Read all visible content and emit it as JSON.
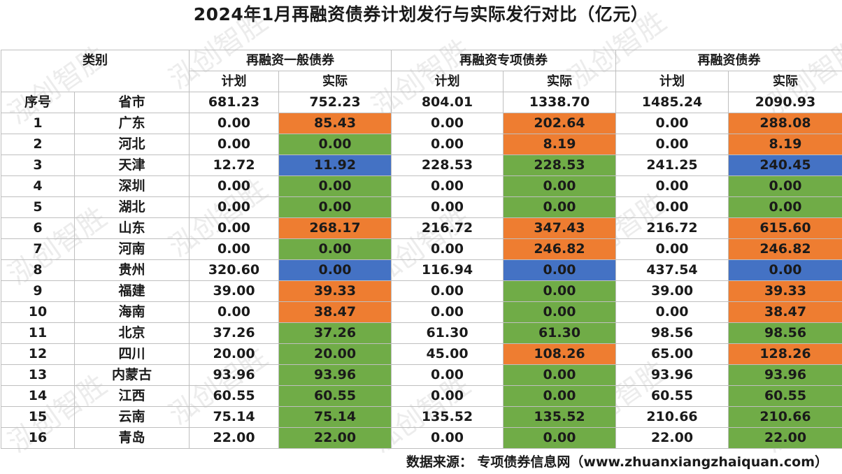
{
  "title": "2024年1月再融资债券计划发行与实际发行对比（亿元）",
  "header": {
    "category": "类别",
    "groups": [
      "再融资一般债券",
      "再融资专项债券",
      "再融资债券"
    ],
    "sub": [
      "计划",
      "实际",
      "计划",
      "实际",
      "计划",
      "实际"
    ],
    "index_label": "序号",
    "province_label": "省市",
    "totals": [
      "681.23",
      "752.23",
      "804.01",
      "1338.70",
      "1485.24",
      "2090.93"
    ]
  },
  "rows": [
    {
      "no": "1",
      "province": "广东",
      "values": [
        "0.00",
        "85.43",
        "0.00",
        "202.64",
        "0.00",
        "288.08"
      ],
      "colors": [
        "orange",
        "orange",
        "orange"
      ]
    },
    {
      "no": "2",
      "province": "河北",
      "values": [
        "0.00",
        "0.00",
        "0.00",
        "8.19",
        "0.00",
        "8.19"
      ],
      "colors": [
        "green",
        "orange",
        "orange"
      ]
    },
    {
      "no": "3",
      "province": "天津",
      "values": [
        "12.72",
        "11.92",
        "228.53",
        "228.53",
        "241.25",
        "240.45"
      ],
      "colors": [
        "blue",
        "green",
        "blue"
      ]
    },
    {
      "no": "4",
      "province": "深圳",
      "values": [
        "0.00",
        "0.00",
        "0.00",
        "0.00",
        "0.00",
        "0.00"
      ],
      "colors": [
        "green",
        "green",
        "green"
      ]
    },
    {
      "no": "5",
      "province": "湖北",
      "values": [
        "0.00",
        "0.00",
        "0.00",
        "0.00",
        "0.00",
        "0.00"
      ],
      "colors": [
        "green",
        "green",
        "green"
      ]
    },
    {
      "no": "6",
      "province": "山东",
      "values": [
        "0.00",
        "268.17",
        "216.72",
        "347.43",
        "216.72",
        "615.60"
      ],
      "colors": [
        "orange",
        "orange",
        "orange"
      ]
    },
    {
      "no": "7",
      "province": "河南",
      "values": [
        "0.00",
        "0.00",
        "0.00",
        "246.82",
        "0.00",
        "246.82"
      ],
      "colors": [
        "green",
        "orange",
        "orange"
      ]
    },
    {
      "no": "8",
      "province": "贵州",
      "values": [
        "320.60",
        "0.00",
        "116.94",
        "0.00",
        "437.54",
        "0.00"
      ],
      "colors": [
        "blue",
        "blue",
        "blue"
      ]
    },
    {
      "no": "9",
      "province": "福建",
      "values": [
        "39.00",
        "39.33",
        "0.00",
        "0.00",
        "39.00",
        "39.33"
      ],
      "colors": [
        "orange",
        "green",
        "orange"
      ]
    },
    {
      "no": "10",
      "province": "海南",
      "values": [
        "0.00",
        "38.47",
        "0.00",
        "0.00",
        "0.00",
        "38.47"
      ],
      "colors": [
        "orange",
        "green",
        "orange"
      ]
    },
    {
      "no": "11",
      "province": "北京",
      "values": [
        "37.26",
        "37.26",
        "61.30",
        "61.30",
        "98.56",
        "98.56"
      ],
      "colors": [
        "green",
        "green",
        "green"
      ]
    },
    {
      "no": "12",
      "province": "四川",
      "values": [
        "20.00",
        "20.00",
        "45.00",
        "108.26",
        "65.00",
        "128.26"
      ],
      "colors": [
        "green",
        "orange",
        "orange"
      ]
    },
    {
      "no": "13",
      "province": "内蒙古",
      "values": [
        "93.96",
        "93.96",
        "0.00",
        "0.00",
        "93.96",
        "93.96"
      ],
      "colors": [
        "green",
        "green",
        "green"
      ]
    },
    {
      "no": "14",
      "province": "江西",
      "values": [
        "60.55",
        "60.55",
        "0.00",
        "0.00",
        "60.55",
        "60.55"
      ],
      "colors": [
        "green",
        "green",
        "green"
      ]
    },
    {
      "no": "15",
      "province": "云南",
      "values": [
        "75.14",
        "75.14",
        "135.52",
        "135.52",
        "210.66",
        "210.66"
      ],
      "colors": [
        "green",
        "green",
        "green"
      ]
    },
    {
      "no": "16",
      "province": "青岛",
      "values": [
        "22.00",
        "22.00",
        "0.00",
        "0.00",
        "22.00",
        "22.00"
      ],
      "colors": [
        "green",
        "green",
        "green"
      ]
    }
  ],
  "colors": {
    "orange": "#ee7d31",
    "green": "#70ac47",
    "blue": "#4472c4"
  },
  "source": "数据来源：  专项债券信息网（www.zhuanxiangzhaiquan.com）",
  "watermark": "泓创智胜"
}
